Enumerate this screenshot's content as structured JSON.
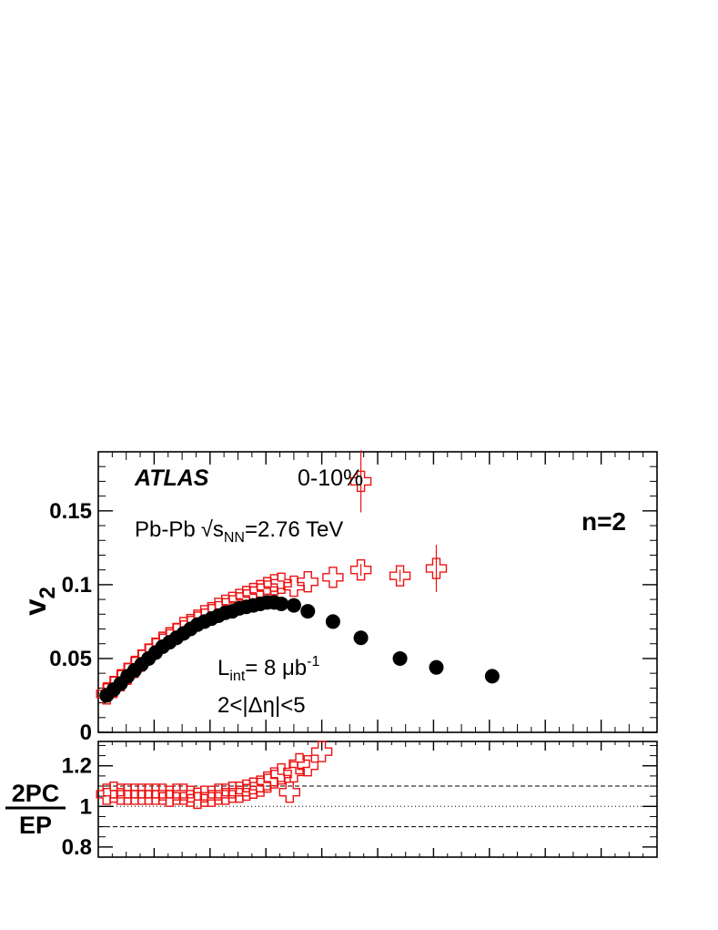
{
  "colors": {
    "series_black": "#000000",
    "series_red": "#ee1111",
    "axes": "#000000"
  },
  "top_panel": {
    "experiment": "ATLAS",
    "centrality": "0-10%",
    "system_prefix": "Pb-Pb",
    "sqrt_symbol": "√",
    "s_letter": "s",
    "s_subscript": "NN",
    "energy_suffix": "=2.76 TeV",
    "harmonic": "n=2",
    "lumi_L": "L",
    "lumi_sub": "int",
    "lumi_value": "= 8 μb",
    "lumi_exp": "-1",
    "eta_range": "2<|Δη|<5",
    "ylabel_main": "v",
    "ylabel_sub": "2"
  },
  "bottom_panel": {
    "ylabel_num": "2PC",
    "ylabel_den": "EP"
  },
  "chart_data": [
    {
      "type": "scatter",
      "panel": "top",
      "xlim": [
        0,
        20
      ],
      "ylim": [
        0,
        0.19
      ],
      "y_ticks": [
        0,
        0.05,
        0.1,
        0.15
      ],
      "y_tick_labels": [
        "0",
        "0.05",
        "0.1",
        "0.15"
      ],
      "x_major_ticks": [
        2,
        4,
        6,
        8,
        10,
        12,
        14,
        16,
        18
      ],
      "x_tick_labels_shown": false,
      "series": [
        {
          "marker": "filled-circle",
          "color": "#000000",
          "x": [
            0.3,
            0.55,
            0.8,
            1.05,
            1.3,
            1.55,
            1.8,
            2.05,
            2.3,
            2.55,
            2.8,
            3.05,
            3.3,
            3.55,
            3.8,
            4.05,
            4.3,
            4.55,
            4.8,
            5.05,
            5.3,
            5.55,
            5.8,
            6.05,
            6.3,
            6.55,
            7.0,
            7.5,
            8.4,
            9.4,
            10.8,
            12.1,
            14.1
          ],
          "y": [
            0.025,
            0.029,
            0.033,
            0.038,
            0.042,
            0.046,
            0.05,
            0.054,
            0.058,
            0.061,
            0.064,
            0.067,
            0.07,
            0.073,
            0.075,
            0.077,
            0.079,
            0.081,
            0.082,
            0.084,
            0.085,
            0.086,
            0.087,
            0.088,
            0.088,
            0.087,
            0.086,
            0.082,
            0.075,
            0.064,
            0.05,
            0.044,
            0.038
          ],
          "yerr": [
            0,
            0,
            0,
            0,
            0,
            0,
            0,
            0,
            0,
            0,
            0,
            0,
            0,
            0,
            0,
            0,
            0,
            0,
            0,
            0,
            0,
            0,
            0,
            0,
            0,
            0,
            0,
            0,
            0,
            0,
            0,
            0,
            0
          ]
        },
        {
          "marker": "open-cross",
          "color": "#ee1111",
          "x": [
            0.3,
            0.55,
            0.8,
            1.05,
            1.3,
            1.55,
            1.8,
            2.05,
            2.3,
            2.55,
            2.8,
            3.05,
            3.3,
            3.55,
            3.8,
            4.05,
            4.3,
            4.55,
            4.8,
            5.05,
            5.3,
            5.55,
            5.8,
            6.05,
            6.3,
            6.55,
            7.0,
            7.5,
            8.4,
            9.4,
            10.8,
            12.1
          ],
          "y": [
            0.026,
            0.031,
            0.035,
            0.04,
            0.044,
            0.049,
            0.053,
            0.057,
            0.061,
            0.064,
            0.067,
            0.071,
            0.073,
            0.076,
            0.079,
            0.081,
            0.084,
            0.086,
            0.088,
            0.09,
            0.092,
            0.094,
            0.096,
            0.098,
            0.1,
            0.101,
            0.099,
            0.102,
            0.105,
            0.11,
            0.106,
            0.111
          ],
          "yerr": [
            0,
            0,
            0,
            0,
            0,
            0,
            0,
            0,
            0,
            0,
            0,
            0,
            0,
            0,
            0,
            0,
            0,
            0,
            0,
            0,
            0,
            0,
            0,
            0,
            0,
            0,
            0,
            0,
            0,
            0.004,
            0.004,
            0.016
          ],
          "extra_points": [
            {
              "x": 9.4,
              "y": 0.17,
              "yerr": 0.021
            }
          ]
        }
      ]
    },
    {
      "type": "scatter",
      "panel": "bottom",
      "xlim": [
        0,
        20
      ],
      "ylim": [
        0.75,
        1.32
      ],
      "y_ticks": [
        0.8,
        1.0,
        1.2
      ],
      "y_tick_labels": [
        "0.8",
        "1",
        "1.2"
      ],
      "reference_lines": [
        {
          "y": 1.1,
          "style": "dashed"
        },
        {
          "y": 1.0,
          "style": "dotted"
        },
        {
          "y": 0.9,
          "style": "dashed"
        }
      ],
      "series": [
        {
          "marker": "open-cross",
          "color": "#ee1111",
          "x": [
            0.3,
            0.55,
            0.8,
            1.05,
            1.3,
            1.55,
            1.8,
            2.05,
            2.3,
            2.55,
            2.8,
            3.05,
            3.3,
            3.55,
            3.8,
            4.05,
            4.3,
            4.55,
            4.8,
            5.05,
            5.3,
            5.55,
            5.8,
            6.05,
            6.3,
            6.55,
            7.0,
            7.5
          ],
          "y": [
            1.06,
            1.07,
            1.06,
            1.06,
            1.06,
            1.06,
            1.06,
            1.06,
            1.06,
            1.05,
            1.06,
            1.06,
            1.05,
            1.04,
            1.05,
            1.05,
            1.06,
            1.06,
            1.07,
            1.07,
            1.08,
            1.09,
            1.1,
            1.12,
            1.14,
            1.16,
            1.17,
            1.2
          ]
        },
        {
          "marker": "open-cross",
          "color": "#ee1111",
          "x": [
            6.85,
            7.2,
            8.0
          ],
          "y": [
            1.07,
            1.21,
            1.27
          ]
        }
      ]
    }
  ]
}
